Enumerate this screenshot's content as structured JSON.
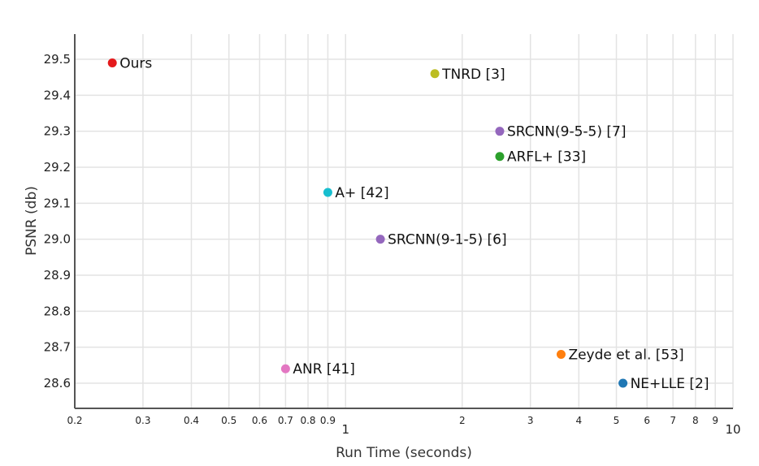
{
  "chart_data": {
    "type": "scatter",
    "title": "",
    "xlabel": "Run Time (seconds)",
    "ylabel": "PSNR (db)",
    "xscale": "log",
    "xlim": [
      0.2,
      10
    ],
    "ylim": [
      28.53,
      29.57
    ],
    "grid": true,
    "x_ticks": [
      {
        "value": 0.2,
        "label": "0.2",
        "major": false
      },
      {
        "value": 0.3,
        "label": "0.3",
        "major": false
      },
      {
        "value": 0.4,
        "label": "0.4",
        "major": false
      },
      {
        "value": 0.5,
        "label": "0.5",
        "major": false
      },
      {
        "value": 0.6,
        "label": "0.6",
        "major": false
      },
      {
        "value": 0.7,
        "label": "0.7",
        "major": false
      },
      {
        "value": 0.8,
        "label": "0.8",
        "major": false
      },
      {
        "value": 0.9,
        "label": "0.9",
        "major": false
      },
      {
        "value": 1,
        "label": "1",
        "major": true
      },
      {
        "value": 2,
        "label": "2",
        "major": false
      },
      {
        "value": 3,
        "label": "3",
        "major": false
      },
      {
        "value": 4,
        "label": "4",
        "major": false
      },
      {
        "value": 5,
        "label": "5",
        "major": false
      },
      {
        "value": 6,
        "label": "6",
        "major": false
      },
      {
        "value": 7,
        "label": "7",
        "major": false
      },
      {
        "value": 8,
        "label": "8",
        "major": false
      },
      {
        "value": 9,
        "label": "9",
        "major": false
      },
      {
        "value": 10,
        "label": "10",
        "major": true
      }
    ],
    "y_ticks": [
      {
        "value": 28.6,
        "label": "28.6"
      },
      {
        "value": 28.7,
        "label": "28.7"
      },
      {
        "value": 28.8,
        "label": "28.8"
      },
      {
        "value": 28.9,
        "label": "28.9"
      },
      {
        "value": 29.0,
        "label": "29.0"
      },
      {
        "value": 29.1,
        "label": "29.1"
      },
      {
        "value": 29.2,
        "label": "29.2"
      },
      {
        "value": 29.3,
        "label": "29.3"
      },
      {
        "value": 29.4,
        "label": "29.4"
      },
      {
        "value": 29.5,
        "label": "29.5"
      }
    ],
    "points": [
      {
        "name": "Ours",
        "x": 0.25,
        "y": 29.49,
        "color": "#e41a1c"
      },
      {
        "name": "TNRD [3]",
        "x": 1.7,
        "y": 29.46,
        "color": "#bcbd22"
      },
      {
        "name": "SRCNN(9-5-5) [7]",
        "x": 2.5,
        "y": 29.3,
        "color": "#9467bd"
      },
      {
        "name": "ARFL+ [33]",
        "x": 2.5,
        "y": 29.23,
        "color": "#2ca02c"
      },
      {
        "name": "A+ [42]",
        "x": 0.9,
        "y": 29.13,
        "color": "#17becf"
      },
      {
        "name": "SRCNN(9-1-5) [6]",
        "x": 1.23,
        "y": 29.0,
        "color": "#9467bd"
      },
      {
        "name": "Zeyde et al. [53]",
        "x": 3.6,
        "y": 28.68,
        "color": "#ff7f0e"
      },
      {
        "name": "ANR [41]",
        "x": 0.7,
        "y": 28.64,
        "color": "#e377c2"
      },
      {
        "name": "NE+LLE [2]",
        "x": 5.2,
        "y": 28.6,
        "color": "#1f77b4"
      }
    ]
  }
}
